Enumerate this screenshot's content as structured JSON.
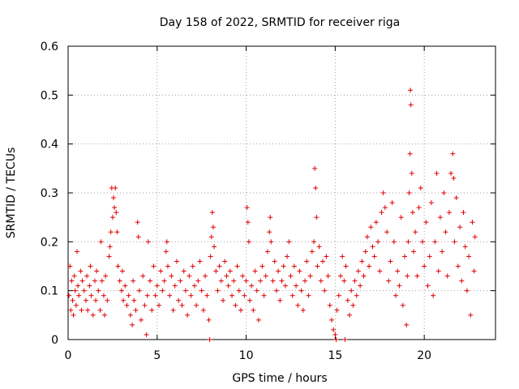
{
  "chart_data": {
    "type": "scatter",
    "title": "Day 158 of 2022, SRMTID for receiver riga",
    "xlabel": "GPS time / hours",
    "ylabel": "SRMTID / TECUs",
    "xlim": [
      0,
      24
    ],
    "ylim": [
      0,
      0.6
    ],
    "xticks": [
      0,
      5,
      10,
      15,
      20
    ],
    "yticks": [
      0,
      0.1,
      0.2,
      0.3,
      0.4,
      0.5,
      0.6
    ],
    "xtick_labels": [
      "0",
      "5",
      "10",
      "15",
      "20"
    ],
    "ytick_labels": [
      "0",
      "0.1",
      "0.2",
      "0.3",
      "0.4",
      "0.5",
      "0.6"
    ],
    "grid": true,
    "marker": "+",
    "color": "#e00000",
    "series": [
      {
        "name": "SRMTID",
        "points": [
          [
            0.05,
            0.09
          ],
          [
            0.1,
            0.15
          ],
          [
            0.15,
            0.06
          ],
          [
            0.2,
            0.12
          ],
          [
            0.25,
            0.08
          ],
          [
            0.3,
            0.05
          ],
          [
            0.35,
            0.13
          ],
          [
            0.4,
            0.1
          ],
          [
            0.45,
            0.07
          ],
          [
            0.5,
            0.18
          ],
          [
            0.55,
            0.11
          ],
          [
            0.6,
            0.09
          ],
          [
            0.7,
            0.14
          ],
          [
            0.75,
            0.06
          ],
          [
            0.8,
            0.12
          ],
          [
            0.9,
            0.1
          ],
          [
            1.0,
            0.08
          ],
          [
            1.05,
            0.13
          ],
          [
            1.1,
            0.06
          ],
          [
            1.2,
            0.11
          ],
          [
            1.25,
            0.15
          ],
          [
            1.3,
            0.09
          ],
          [
            1.4,
            0.05
          ],
          [
            1.5,
            0.12
          ],
          [
            1.55,
            0.08
          ],
          [
            1.6,
            0.14
          ],
          [
            1.7,
            0.1
          ],
          [
            1.8,
            0.06
          ],
          [
            1.85,
            0.2
          ],
          [
            1.9,
            0.12
          ],
          [
            2.0,
            0.09
          ],
          [
            2.05,
            0.05
          ],
          [
            2.1,
            0.13
          ],
          [
            2.2,
            0.08
          ],
          [
            2.3,
            0.17
          ],
          [
            2.35,
            0.19
          ],
          [
            2.4,
            0.22
          ],
          [
            2.45,
            0.31
          ],
          [
            2.5,
            0.25
          ],
          [
            2.55,
            0.29
          ],
          [
            2.6,
            0.27
          ],
          [
            2.65,
            0.31
          ],
          [
            2.7,
            0.26
          ],
          [
            2.75,
            0.22
          ],
          [
            2.8,
            0.15
          ],
          [
            2.9,
            0.12
          ],
          [
            3.0,
            0.1
          ],
          [
            3.05,
            0.14
          ],
          [
            3.1,
            0.08
          ],
          [
            3.2,
            0.11
          ],
          [
            3.3,
            0.07
          ],
          [
            3.4,
            0.09
          ],
          [
            3.5,
            0.05
          ],
          [
            3.6,
            0.03
          ],
          [
            3.65,
            0.12
          ],
          [
            3.7,
            0.08
          ],
          [
            3.8,
            0.06
          ],
          [
            3.9,
            0.24
          ],
          [
            3.95,
            0.21
          ],
          [
            4.0,
            0.1
          ],
          [
            4.1,
            0.04
          ],
          [
            4.2,
            0.13
          ],
          [
            4.3,
            0.07
          ],
          [
            4.4,
            0.01
          ],
          [
            4.45,
            0.09
          ],
          [
            4.5,
            0.2
          ],
          [
            4.6,
            0.12
          ],
          [
            4.7,
            0.06
          ],
          [
            4.8,
            0.15
          ],
          [
            4.9,
            0.09
          ],
          [
            5.0,
            0.11
          ],
          [
            5.1,
            0.07
          ],
          [
            5.2,
            0.14
          ],
          [
            5.3,
            0.1
          ],
          [
            5.4,
            0.12
          ],
          [
            5.5,
            0.18
          ],
          [
            5.55,
            0.2
          ],
          [
            5.6,
            0.15
          ],
          [
            5.7,
            0.09
          ],
          [
            5.8,
            0.13
          ],
          [
            5.9,
            0.06
          ],
          [
            6.0,
            0.11
          ],
          [
            6.1,
            0.16
          ],
          [
            6.2,
            0.08
          ],
          [
            6.3,
            0.12
          ],
          [
            6.4,
            0.07
          ],
          [
            6.5,
            0.14
          ],
          [
            6.6,
            0.1
          ],
          [
            6.7,
            0.05
          ],
          [
            6.8,
            0.13
          ],
          [
            6.9,
            0.09
          ],
          [
            7.0,
            0.15
          ],
          [
            7.1,
            0.11
          ],
          [
            7.2,
            0.07
          ],
          [
            7.3,
            0.12
          ],
          [
            7.4,
            0.16
          ],
          [
            7.5,
            0.1
          ],
          [
            7.6,
            0.06
          ],
          [
            7.7,
            0.13
          ],
          [
            7.8,
            0.09
          ],
          [
            7.9,
            0.04
          ],
          [
            7.95,
            0.0
          ],
          [
            8.0,
            0.17
          ],
          [
            8.05,
            0.21
          ],
          [
            8.1,
            0.26
          ],
          [
            8.15,
            0.23
          ],
          [
            8.2,
            0.19
          ],
          [
            8.3,
            0.14
          ],
          [
            8.4,
            0.1
          ],
          [
            8.5,
            0.15
          ],
          [
            8.6,
            0.12
          ],
          [
            8.7,
            0.08
          ],
          [
            8.8,
            0.16
          ],
          [
            8.9,
            0.13
          ],
          [
            9.0,
            0.11
          ],
          [
            9.1,
            0.14
          ],
          [
            9.2,
            0.09
          ],
          [
            9.3,
            0.12
          ],
          [
            9.4,
            0.07
          ],
          [
            9.5,
            0.15
          ],
          [
            9.6,
            0.1
          ],
          [
            9.7,
            0.06
          ],
          [
            9.8,
            0.13
          ],
          [
            9.9,
            0.09
          ],
          [
            10.0,
            0.12
          ],
          [
            10.05,
            0.27
          ],
          [
            10.1,
            0.24
          ],
          [
            10.15,
            0.2
          ],
          [
            10.2,
            0.08
          ],
          [
            10.3,
            0.11
          ],
          [
            10.4,
            0.06
          ],
          [
            10.5,
            0.14
          ],
          [
            10.6,
            0.1
          ],
          [
            10.7,
            0.04
          ],
          [
            10.8,
            0.12
          ],
          [
            10.9,
            0.15
          ],
          [
            11.0,
            0.09
          ],
          [
            11.1,
            0.13
          ],
          [
            11.2,
            0.18
          ],
          [
            11.3,
            0.22
          ],
          [
            11.35,
            0.25
          ],
          [
            11.4,
            0.2
          ],
          [
            11.5,
            0.12
          ],
          [
            11.6,
            0.16
          ],
          [
            11.7,
            0.1
          ],
          [
            11.8,
            0.14
          ],
          [
            11.9,
            0.08
          ],
          [
            12.0,
            0.12
          ],
          [
            12.1,
            0.15
          ],
          [
            12.2,
            0.11
          ],
          [
            12.3,
            0.17
          ],
          [
            12.4,
            0.2
          ],
          [
            12.5,
            0.13
          ],
          [
            12.6,
            0.09
          ],
          [
            12.7,
            0.15
          ],
          [
            12.8,
            0.11
          ],
          [
            12.9,
            0.07
          ],
          [
            13.0,
            0.14
          ],
          [
            13.1,
            0.1
          ],
          [
            13.2,
            0.06
          ],
          [
            13.3,
            0.12
          ],
          [
            13.4,
            0.16
          ],
          [
            13.5,
            0.09
          ],
          [
            13.6,
            0.13
          ],
          [
            13.7,
            0.18
          ],
          [
            13.8,
            0.2
          ],
          [
            13.85,
            0.35
          ],
          [
            13.9,
            0.31
          ],
          [
            13.95,
            0.25
          ],
          [
            14.0,
            0.15
          ],
          [
            14.1,
            0.19
          ],
          [
            14.2,
            0.12
          ],
          [
            14.3,
            0.16
          ],
          [
            14.4,
            0.1
          ],
          [
            14.5,
            0.17
          ],
          [
            14.6,
            0.13
          ],
          [
            14.7,
            0.07
          ],
          [
            14.8,
            0.04
          ],
          [
            14.9,
            0.02
          ],
          [
            15.0,
            0.01
          ],
          [
            15.05,
            0.0
          ],
          [
            15.1,
            0.06
          ],
          [
            15.2,
            0.09
          ],
          [
            15.3,
            0.13
          ],
          [
            15.4,
            0.17
          ],
          [
            15.5,
            0.12
          ],
          [
            15.55,
            0.0
          ],
          [
            15.6,
            0.15
          ],
          [
            15.7,
            0.08
          ],
          [
            15.8,
            0.05
          ],
          [
            15.9,
            0.1
          ],
          [
            16.0,
            0.07
          ],
          [
            16.1,
            0.12
          ],
          [
            16.2,
            0.09
          ],
          [
            16.3,
            0.14
          ],
          [
            16.4,
            0.11
          ],
          [
            16.5,
            0.16
          ],
          [
            16.6,
            0.13
          ],
          [
            16.7,
            0.18
          ],
          [
            16.8,
            0.21
          ],
          [
            16.9,
            0.15
          ],
          [
            17.0,
            0.23
          ],
          [
            17.1,
            0.19
          ],
          [
            17.2,
            0.17
          ],
          [
            17.3,
            0.24
          ],
          [
            17.4,
            0.2
          ],
          [
            17.5,
            0.14
          ],
          [
            17.6,
            0.26
          ],
          [
            17.7,
            0.3
          ],
          [
            17.8,
            0.27
          ],
          [
            17.9,
            0.22
          ],
          [
            18.0,
            0.12
          ],
          [
            18.1,
            0.16
          ],
          [
            18.2,
            0.28
          ],
          [
            18.3,
            0.2
          ],
          [
            18.4,
            0.09
          ],
          [
            18.5,
            0.14
          ],
          [
            18.6,
            0.11
          ],
          [
            18.7,
            0.25
          ],
          [
            18.8,
            0.07
          ],
          [
            18.9,
            0.17
          ],
          [
            19.0,
            0.03
          ],
          [
            19.05,
            0.13
          ],
          [
            19.1,
            0.2
          ],
          [
            19.15,
            0.3
          ],
          [
            19.2,
            0.38
          ],
          [
            19.22,
            0.51
          ],
          [
            19.25,
            0.48
          ],
          [
            19.3,
            0.34
          ],
          [
            19.35,
            0.26
          ],
          [
            19.4,
            0.18
          ],
          [
            19.5,
            0.22
          ],
          [
            19.6,
            0.13
          ],
          [
            19.7,
            0.27
          ],
          [
            19.8,
            0.31
          ],
          [
            19.9,
            0.2
          ],
          [
            20.0,
            0.15
          ],
          [
            20.1,
            0.24
          ],
          [
            20.2,
            0.11
          ],
          [
            20.3,
            0.17
          ],
          [
            20.4,
            0.28
          ],
          [
            20.5,
            0.09
          ],
          [
            20.6,
            0.2
          ],
          [
            20.7,
            0.34
          ],
          [
            20.8,
            0.14
          ],
          [
            20.9,
            0.25
          ],
          [
            21.0,
            0.18
          ],
          [
            21.1,
            0.3
          ],
          [
            21.2,
            0.22
          ],
          [
            21.3,
            0.13
          ],
          [
            21.4,
            0.26
          ],
          [
            21.5,
            0.34
          ],
          [
            21.6,
            0.38
          ],
          [
            21.65,
            0.33
          ],
          [
            21.7,
            0.2
          ],
          [
            21.8,
            0.29
          ],
          [
            21.9,
            0.15
          ],
          [
            22.0,
            0.23
          ],
          [
            22.1,
            0.12
          ],
          [
            22.2,
            0.26
          ],
          [
            22.3,
            0.19
          ],
          [
            22.4,
            0.1
          ],
          [
            22.5,
            0.17
          ],
          [
            22.6,
            0.05
          ],
          [
            22.7,
            0.24
          ],
          [
            22.8,
            0.14
          ],
          [
            22.85,
            0.21
          ]
        ]
      }
    ]
  }
}
